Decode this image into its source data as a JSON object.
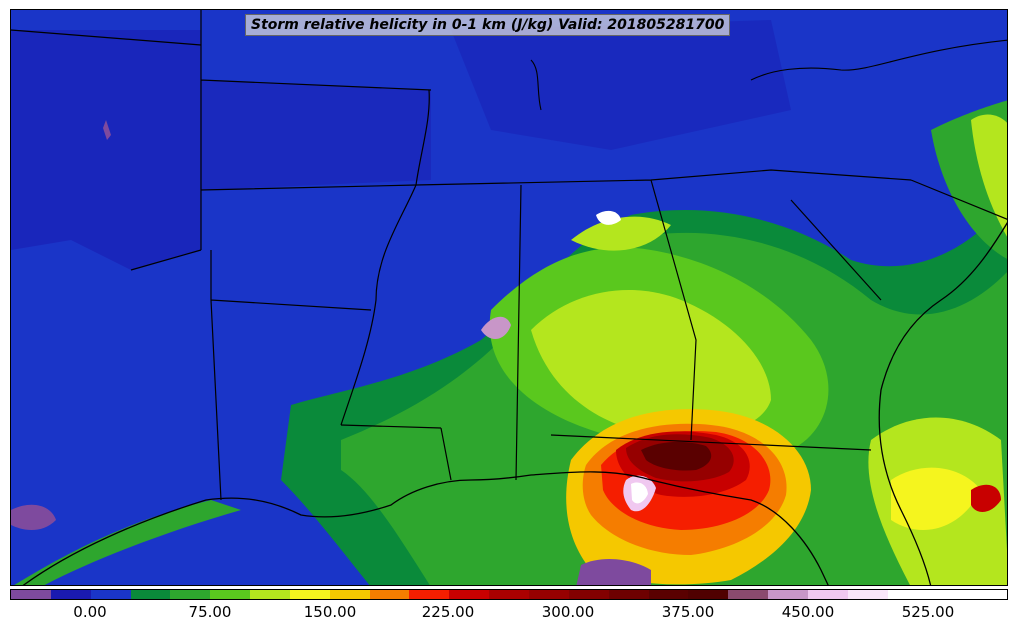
{
  "title": "Storm relative helicity in 0-1 km (J/kg) Valid: 201805281700",
  "colorbar": {
    "colors": [
      "#7e4a9e",
      "#1a1ab0",
      "#1a35c8",
      "#0a8a3a",
      "#2ea62e",
      "#5ac81e",
      "#b4e61e",
      "#f5f51e",
      "#f5c800",
      "#f57d00",
      "#f51e00",
      "#c80000",
      "#aa0000",
      "#960000",
      "#820000",
      "#6e0000",
      "#5a0000",
      "#500000",
      "#8a4a6e",
      "#c896c8",
      "#f0c8f0",
      "#fae6fa",
      "#ffffff",
      "#ffffff",
      "#ffffff"
    ],
    "tick_labels": [
      "0.00",
      "75.00",
      "150.00",
      "225.00",
      "300.00",
      "375.00",
      "450.00",
      "525.00"
    ]
  },
  "palette": {
    "deep_blue": "#1a1ab0",
    "blue": "#1a35c8",
    "light_blue": "#2a55e0",
    "dark_green": "#0a8a3a",
    "green": "#2ea62e",
    "light_green": "#5ac81e",
    "yellow_green": "#b4e61e",
    "yellow": "#f5f51e",
    "orange": "#f57d00",
    "red": "#f51e00",
    "dark_red": "#960000",
    "maroon": "#5a0000",
    "purple": "#7e4a9e",
    "white": "#ffffff"
  }
}
